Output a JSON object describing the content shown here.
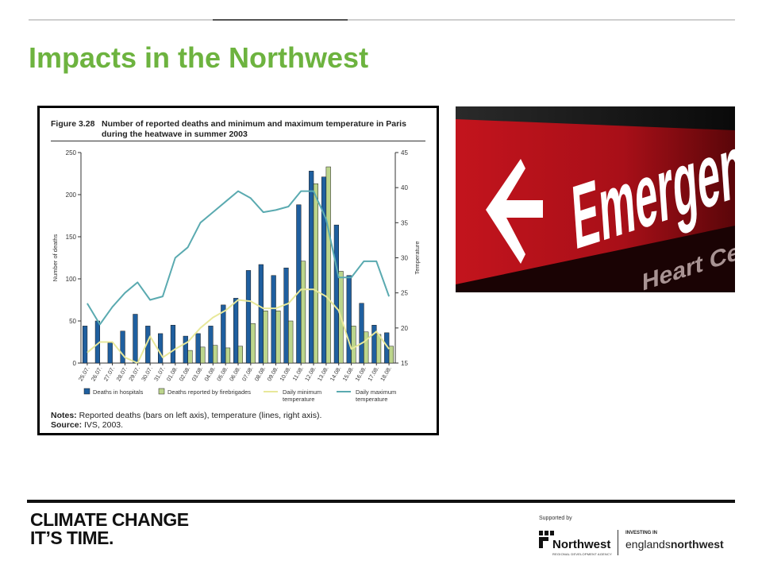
{
  "slide": {
    "title": "Impacts in the Northwest"
  },
  "figure": {
    "label": "Figure 3.28",
    "caption": "Number of reported deaths and minimum and maximum temperature in Paris during the heatwave in summer 2003",
    "notes_label": "Notes:",
    "notes": "Reported deaths (bars on left axis), temperature (lines, right axis).",
    "source_label": "Source:",
    "source": "IVS, 2003."
  },
  "chart_data": {
    "type": "bar",
    "categories": [
      "25.07.",
      "26.07.",
      "27.07.",
      "28.07.",
      "29.07.",
      "30.07.",
      "31.07.",
      "01.08.",
      "02.08.",
      "03.08.",
      "04.08.",
      "05.08.",
      "06.08.",
      "07.08.",
      "08.08.",
      "09.08.",
      "10.08.",
      "11.08.",
      "12.08.",
      "13.08.",
      "14.08.",
      "15.08.",
      "16.08.",
      "17.08.",
      "18.08."
    ],
    "ylabel": "Number of deaths",
    "y2label": "Temperature",
    "ylim": [
      0,
      250
    ],
    "y2lim": [
      15,
      45
    ],
    "yticks": [
      0,
      50,
      100,
      150,
      200,
      250
    ],
    "y2ticks": [
      15,
      20,
      25,
      30,
      35,
      40,
      45
    ],
    "grid": false,
    "legend_position": "bottom",
    "series": [
      {
        "name": "Deaths in hospitals",
        "kind": "bar",
        "axis": "left",
        "color": "#1f5f9f",
        "values": [
          44,
          50,
          24,
          38,
          58,
          44,
          35,
          45,
          32,
          35,
          44,
          69,
          77,
          110,
          117,
          104,
          113,
          188,
          228,
          221,
          164,
          104,
          71,
          45,
          36
        ]
      },
      {
        "name": "Deaths reported by firebrigades",
        "kind": "bar",
        "axis": "left",
        "color": "#bcd58c",
        "values": [
          0,
          0,
          0,
          0,
          0,
          0,
          0,
          0,
          15,
          19,
          21,
          18,
          20,
          47,
          62,
          62,
          50,
          121,
          213,
          233,
          109,
          44,
          37,
          34,
          20
        ]
      },
      {
        "name": "Daily minimum temperature",
        "kind": "line",
        "axis": "right",
        "color": "#e8e89a",
        "values": [
          16.5,
          18,
          18,
          15.8,
          15,
          18.8,
          15.8,
          17,
          18,
          20,
          21.5,
          22.5,
          24,
          23.8,
          22.8,
          22.8,
          23.5,
          25.5,
          25.5,
          24.5,
          22.5,
          17,
          18,
          19.5,
          17
        ]
      },
      {
        "name": "Daily maximum temperature",
        "kind": "line",
        "axis": "right",
        "color": "#5aaab0",
        "values": [
          23.5,
          20.5,
          23,
          25,
          26.5,
          24,
          24.5,
          30,
          31.5,
          35,
          36.5,
          38,
          39.5,
          38.5,
          36.5,
          36.8,
          37.3,
          39.5,
          39.5,
          35.5,
          27.2,
          27.2,
          29.5,
          29.5,
          24.5
        ]
      }
    ]
  },
  "photo": {
    "sign_text": "Emergency",
    "sign_subtext": "Heart Ce"
  },
  "footer": {
    "brand_line1": "CLIMATE CHANGE",
    "brand_line2": "IT’S TIME.",
    "supported_by": "Supported by",
    "nwda_name": "Northwest",
    "nwda_sub": "REGIONAL DEVELOPMENT AGENCY",
    "investing": "INVESTING IN",
    "england_prefix": "englands",
    "england_suffix": "northwest"
  },
  "colors": {
    "title": "#6db33f",
    "sign_red": "#b3121b"
  }
}
